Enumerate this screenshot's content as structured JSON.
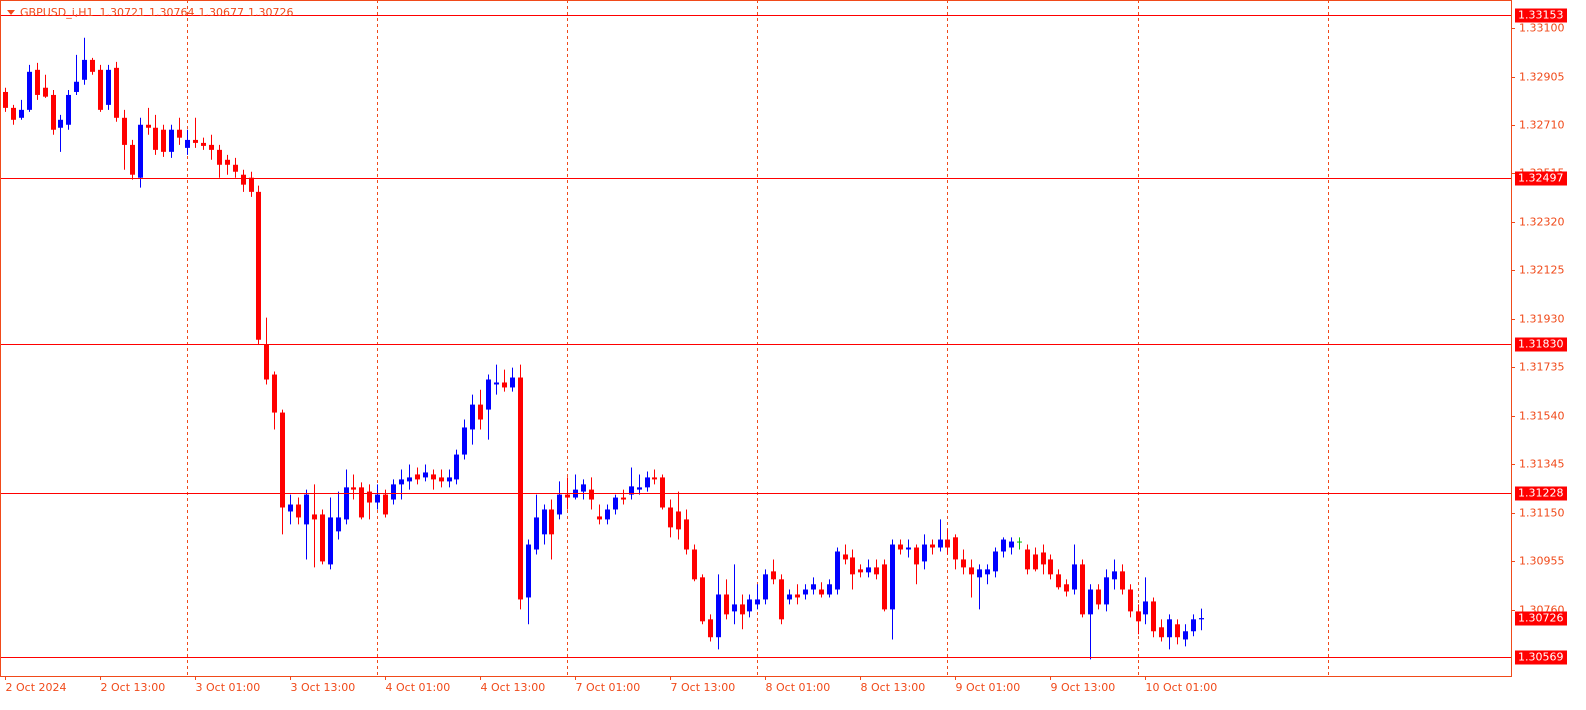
{
  "chart_data": {
    "type": "candlestick",
    "symbol": "GBPUSD_i,H1",
    "categories": [
      "2 Oct 2024",
      null,
      null,
      null,
      null,
      null,
      null,
      null,
      null,
      null,
      null,
      null,
      "2 Oct 13:00",
      null,
      null,
      null,
      null,
      null,
      null,
      null,
      null,
      null,
      null,
      null,
      "3 Oct 01:00",
      null,
      null,
      null,
      null,
      null,
      null,
      null,
      null,
      null,
      null,
      null,
      "3 Oct 13:00",
      null,
      null,
      null,
      null,
      null,
      null,
      null,
      null,
      null,
      null,
      null,
      "4 Oct 01:00",
      null,
      null,
      null,
      null,
      null,
      null,
      null,
      null,
      null,
      null,
      null,
      "4 Oct 13:00",
      null,
      null,
      null,
      null,
      null,
      null,
      null,
      null,
      null,
      null,
      null,
      "7 Oct 01:00",
      null,
      null,
      null,
      null,
      null,
      null,
      null,
      null,
      null,
      null,
      null,
      "7 Oct 13:00",
      null,
      null,
      null,
      null,
      null,
      null,
      null,
      null,
      null,
      null,
      null,
      "8 Oct 01:00",
      null,
      null,
      null,
      null,
      null,
      null,
      null,
      null,
      null,
      null,
      null,
      "8 Oct 13:00",
      null,
      null,
      null,
      null,
      null,
      null,
      null,
      null,
      null,
      null,
      null,
      "9 Oct 01:00",
      null,
      null,
      null,
      null,
      null,
      null,
      null,
      null,
      null,
      null,
      null,
      "9 Oct 13:00",
      null,
      null,
      null,
      null,
      null,
      null,
      null,
      null,
      null,
      null,
      null,
      "10 Oct 01:00",
      null,
      null,
      null,
      null,
      null,
      null,
      null
    ],
    "open": [
      1.32843,
      1.32779,
      1.32739,
      1.32771,
      1.32932,
      1.3286,
      1.32831,
      1.32699,
      1.32711,
      1.32843,
      1.32892,
      1.32972,
      1.32932,
      1.32791,
      1.3294,
      1.32739,
      1.3263,
      1.32498,
      1.32711,
      1.32699,
      1.32691,
      1.32602,
      1.32691,
      1.32618,
      1.3265,
      1.32638,
      1.3263,
      1.3261,
      1.3257,
      1.3255,
      1.3251,
      1.32498,
      1.32441,
      1.31826,
      1.31706,
      1.31553,
      1.31155,
      1.31183,
      1.31103,
      1.31143,
      1.31143,
      1.30942,
      1.31075,
      1.31123,
      1.31252,
      1.31252,
      1.31235,
      1.31191,
      1.31223,
      1.31203,
      1.31264,
      1.31276,
      1.31304,
      1.31292,
      1.31304,
      1.31292,
      1.31276,
      1.31284,
      1.31384,
      1.31485,
      1.31585,
      1.31565,
      1.31666,
      1.31674,
      1.31654,
      1.31694,
      1.30809,
      1.31002,
      1.31063,
      1.31163,
      1.31143,
      1.31223,
      1.31211,
      1.31235,
      1.31243,
      1.31135,
      1.31123,
      1.31163,
      1.31211,
      1.31223,
      1.31243,
      1.31252,
      1.31292,
      1.31292,
      1.31171,
      1.31155,
      1.31123,
      1.31002,
      1.3089,
      1.30721,
      1.30649,
      1.30821,
      1.30753,
      1.30781,
      1.30753,
      1.30781,
      1.30801,
      1.30914,
      1.30882,
      1.30801,
      1.30821,
      1.30821,
      1.30841,
      1.30841,
      1.30821,
      1.30841,
      1.30982,
      1.3097,
      1.30922,
      1.3091,
      1.3093,
      1.30942,
      1.30761,
      1.31022,
      1.31002,
      1.3101,
      1.30954,
      1.31022,
      1.3101,
      1.31042,
      1.31051,
      1.30962,
      1.3093,
      1.3089,
      1.30902,
      1.30914,
      1.30994,
      1.3101,
      1.31034,
      1.31002,
      1.30982,
      1.3099,
      1.30962,
      1.30902,
      1.30862,
      1.30841,
      1.30942,
      1.30741,
      1.30841,
      1.30781,
      1.30882,
      1.30914,
      1.30841,
      1.30753,
      1.30741,
      1.30793,
      1.30689,
      1.30649,
      1.30701,
      1.3064,
      1.30673,
      1.30721
    ],
    "high": [
      1.3286,
      1.32791,
      1.32811,
      1.32952,
      1.3296,
      1.32912,
      1.32851,
      1.32751,
      1.32851,
      1.32992,
      1.33061,
      1.3298,
      1.32952,
      1.32952,
      1.32964,
      1.32771,
      1.3265,
      1.32739,
      1.32779,
      1.32751,
      1.32711,
      1.32711,
      1.32739,
      1.32691,
      1.32739,
      1.32659,
      1.32671,
      1.3263,
      1.3259,
      1.32578,
      1.3253,
      1.32522,
      1.32466,
      1.31935,
      1.31718,
      1.31565,
      1.31223,
      1.31211,
      1.31243,
      1.31264,
      1.31163,
      1.31211,
      1.31235,
      1.31324,
      1.31304,
      1.31272,
      1.31264,
      1.31264,
      1.31243,
      1.31284,
      1.31324,
      1.31344,
      1.31332,
      1.31344,
      1.31324,
      1.31324,
      1.31324,
      1.31404,
      1.31525,
      1.31625,
      1.31645,
      1.31706,
      1.31746,
      1.31726,
      1.31734,
      1.31746,
      1.31042,
      1.31223,
      1.31183,
      1.31203,
      1.31276,
      1.31292,
      1.31304,
      1.31284,
      1.31292,
      1.31183,
      1.31183,
      1.31223,
      1.31243,
      1.31332,
      1.31304,
      1.31316,
      1.31324,
      1.31304,
      1.31203,
      1.31235,
      1.31163,
      1.31022,
      1.30902,
      1.30741,
      1.30902,
      1.30882,
      1.30942,
      1.30821,
      1.30821,
      1.30862,
      1.30922,
      1.30962,
      1.30902,
      1.30841,
      1.30862,
      1.30862,
      1.3089,
      1.3087,
      1.30882,
      1.3101,
      1.31022,
      1.31002,
      1.30942,
      1.30962,
      1.30962,
      1.30962,
      1.31042,
      1.31042,
      1.31042,
      1.31022,
      1.31063,
      1.31042,
      1.31123,
      1.31083,
      1.31063,
      1.31002,
      1.30962,
      1.30942,
      1.30942,
      1.3101,
      1.31051,
      1.31051,
      1.31051,
      1.31022,
      1.3101,
      1.31022,
      1.30982,
      1.30922,
      1.30882,
      1.31022,
      1.30962,
      1.30862,
      1.30862,
      1.30922,
      1.30962,
      1.30942,
      1.30862,
      1.30781,
      1.3089,
      1.30809,
      1.30721,
      1.30741,
      1.30721,
      1.30701,
      1.30741,
      1.30764
    ],
    "low": [
      1.32763,
      1.32711,
      1.32731,
      1.32763,
      1.32811,
      1.32819,
      1.32671,
      1.32602,
      1.32691,
      1.32831,
      1.32872,
      1.32912,
      1.32763,
      1.32771,
      1.32723,
      1.3253,
      1.3249,
      1.32458,
      1.32671,
      1.3259,
      1.32582,
      1.32578,
      1.3263,
      1.3259,
      1.32618,
      1.3261,
      1.3257,
      1.32498,
      1.3251,
      1.32498,
      1.32441,
      1.32421,
      1.31826,
      1.31666,
      1.31485,
      1.31063,
      1.31103,
      1.31103,
      1.30962,
      1.3093,
      1.30942,
      1.30922,
      1.31042,
      1.31103,
      1.31203,
      1.31123,
      1.31123,
      1.31163,
      1.31131,
      1.31183,
      1.31203,
      1.31243,
      1.31264,
      1.31276,
      1.31243,
      1.31252,
      1.31252,
      1.31264,
      1.31364,
      1.31424,
      1.31485,
      1.31444,
      1.31625,
      1.31637,
      1.31637,
      1.30761,
      1.30701,
      1.30982,
      1.31022,
      1.30962,
      1.31123,
      1.31163,
      1.31203,
      1.31203,
      1.31163,
      1.31103,
      1.31103,
      1.31143,
      1.31183,
      1.31203,
      1.31223,
      1.31235,
      1.31264,
      1.31163,
      1.31051,
      1.31042,
      1.30982,
      1.30874,
      1.30701,
      1.30632,
      1.306,
      1.30721,
      1.30701,
      1.30681,
      1.30729,
      1.30761,
      1.30781,
      1.30862,
      1.30701,
      1.30781,
      1.30781,
      1.30801,
      1.30821,
      1.30809,
      1.30809,
      1.30821,
      1.30942,
      1.30841,
      1.3089,
      1.3089,
      1.30882,
      1.30753,
      1.3064,
      1.30982,
      1.3097,
      1.30862,
      1.30922,
      1.30982,
      1.30994,
      1.30982,
      1.30922,
      1.30902,
      1.30809,
      1.30761,
      1.30862,
      1.3089,
      1.3097,
      1.30982,
      1.31002,
      1.30902,
      1.30914,
      1.30902,
      1.30882,
      1.30841,
      1.30813,
      1.30821,
      1.30729,
      1.3056,
      1.30761,
      1.30753,
      1.30841,
      1.30821,
      1.30729,
      1.30661,
      1.30701,
      1.30649,
      1.30632,
      1.306,
      1.3062,
      1.30612,
      1.30653,
      1.30677
    ],
    "close": [
      1.32779,
      1.32731,
      1.32771,
      1.32924,
      1.32831,
      1.32824,
      1.32691,
      1.32731,
      1.32831,
      1.32884,
      1.32972,
      1.32924,
      1.32771,
      1.32932,
      1.32739,
      1.3263,
      1.3251,
      1.32711,
      1.32699,
      1.3261,
      1.32602,
      1.32691,
      1.32659,
      1.3265,
      1.32638,
      1.32626,
      1.3261,
      1.3255,
      1.3255,
      1.32522,
      1.3247,
      1.32441,
      1.31846,
      1.31686,
      1.31553,
      1.31171,
      1.31183,
      1.31131,
      1.31223,
      1.31123,
      1.30954,
      1.31131,
      1.31131,
      1.31252,
      1.31243,
      1.31131,
      1.31191,
      1.31223,
      1.31143,
      1.31264,
      1.31284,
      1.31292,
      1.31284,
      1.31312,
      1.31284,
      1.31276,
      1.31292,
      1.31384,
      1.31493,
      1.31585,
      1.31525,
      1.31686,
      1.31674,
      1.31654,
      1.31694,
      1.30801,
      1.31022,
      1.31131,
      1.31163,
      1.31063,
      1.31223,
      1.31211,
      1.31243,
      1.31264,
      1.31203,
      1.31123,
      1.31163,
      1.31211,
      1.31203,
      1.31256,
      1.31252,
      1.31292,
      1.31284,
      1.31171,
      1.31091,
      1.31083,
      1.31002,
      1.30882,
      1.30713,
      1.30649,
      1.30821,
      1.30741,
      1.30781,
      1.30741,
      1.30801,
      1.30801,
      1.30902,
      1.30882,
      1.30721,
      1.30821,
      1.30809,
      1.30841,
      1.30862,
      1.30821,
      1.30862,
      1.30994,
      1.30962,
      1.30902,
      1.3091,
      1.3093,
      1.30902,
      1.30761,
      1.31022,
      1.31002,
      1.3101,
      1.30942,
      1.31022,
      1.3101,
      1.31042,
      1.3101,
      1.30962,
      1.3093,
      1.30902,
      1.30922,
      1.30922,
      1.30994,
      1.31042,
      1.31034,
      1.31034,
      1.30922,
      1.30922,
      1.30942,
      1.30902,
      1.3085,
      1.30833,
      1.30942,
      1.30741,
      1.30841,
      1.30781,
      1.3089,
      1.30914,
      1.30841,
      1.30753,
      1.30713,
      1.30793,
      1.30673,
      1.30649,
      1.30721,
      1.30649,
      1.30673,
      1.30721,
      1.30726
    ],
    "up_color": "#0000ff",
    "down_color": "#ff0000",
    "doji_color": "#00c000",
    "ylim": [
      1.30493,
      1.33213
    ],
    "yticks": [
      {
        "value": 1.331,
        "label": "1.33100"
      },
      1.32905,
      {
        "value": 1.3271,
        "label": "1.32710"
      },
      1.32515,
      {
        "value": 1.3232,
        "label": "1.32320"
      },
      1.32125,
      {
        "value": 1.3193,
        "label": "1.31930"
      },
      1.31735,
      {
        "value": 1.3154,
        "label": "1.31540"
      },
      1.31345,
      {
        "value": 1.3115,
        "label": "1.31150"
      },
      1.30955,
      {
        "value": 1.3076,
        "label": "1.30760"
      }
    ],
    "levels": [
      1.33153,
      1.32497,
      {
        "value": 1.3183,
        "label": "1.31830"
      },
      1.31228,
      1.30569
    ],
    "level_color": "#ff0000"
  }
}
